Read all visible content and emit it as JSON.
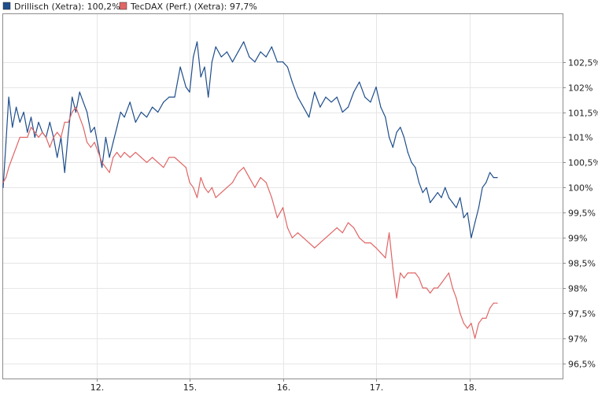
{
  "chart_data": {
    "type": "line",
    "title": "",
    "xlabel": "",
    "ylabel": "",
    "legend_position": "top-left",
    "grid": true,
    "x_tick_labels": [
      "12.",
      "15.",
      "16.",
      "17.",
      "18."
    ],
    "x_tick_positions": [
      1,
      2,
      3,
      4,
      5
    ],
    "xlim": [
      0,
      6
    ],
    "y_tick_values": [
      96.5,
      97,
      97.5,
      98,
      98.5,
      99,
      99.5,
      100,
      100.5,
      101,
      101.5,
      102,
      102.5
    ],
    "y_tick_labels": [
      "96,5%",
      "97%",
      "97,5%",
      "98%",
      "98,5%",
      "99%",
      "99,5%",
      "100%",
      "100,5%",
      "101%",
      "101,5%",
      "102%",
      "102,5%"
    ],
    "ylim": [
      96.2,
      103.45
    ],
    "series": [
      {
        "name": "Drillisch",
        "legend_label": "Drillisch (Xetra): 100,2%",
        "color": "#1f4e8c",
        "x": [
          0.0,
          0.03,
          0.06,
          0.1,
          0.14,
          0.18,
          0.22,
          0.26,
          0.3,
          0.34,
          0.38,
          0.42,
          0.46,
          0.5,
          0.54,
          0.58,
          0.62,
          0.66,
          0.7,
          0.74,
          0.78,
          0.82,
          0.86,
          0.9,
          0.94,
          0.98,
          1.02,
          1.06,
          1.1,
          1.14,
          1.18,
          1.22,
          1.26,
          1.3,
          1.36,
          1.42,
          1.48,
          1.54,
          1.6,
          1.66,
          1.72,
          1.78,
          1.84,
          1.9,
          1.96,
          2.0,
          2.04,
          2.08,
          2.12,
          2.16,
          2.2,
          2.24,
          2.28,
          2.34,
          2.4,
          2.46,
          2.52,
          2.58,
          2.64,
          2.7,
          2.76,
          2.82,
          2.88,
          2.94,
          3.0,
          3.05,
          3.1,
          3.16,
          3.22,
          3.28,
          3.34,
          3.4,
          3.46,
          3.52,
          3.58,
          3.64,
          3.7,
          3.76,
          3.82,
          3.88,
          3.94,
          4.0,
          4.05,
          4.1,
          4.14,
          4.18,
          4.22,
          4.26,
          4.3,
          4.34,
          4.38,
          4.42,
          4.46,
          4.5,
          4.54,
          4.58,
          4.62,
          4.66,
          4.7,
          4.74,
          4.78,
          4.82,
          4.86,
          4.9,
          4.94,
          4.98,
          5.02,
          5.06,
          5.1,
          5.14,
          5.18,
          5.22,
          5.26,
          5.3
        ],
        "values": [
          100.0,
          100.9,
          101.8,
          101.2,
          101.6,
          101.3,
          101.5,
          101.1,
          101.4,
          101.0,
          101.3,
          101.1,
          101.0,
          101.3,
          101.0,
          100.6,
          101.0,
          100.3,
          101.1,
          101.8,
          101.5,
          101.9,
          101.7,
          101.5,
          101.1,
          101.2,
          100.8,
          100.4,
          101.0,
          100.6,
          100.9,
          101.2,
          101.5,
          101.4,
          101.7,
          101.3,
          101.5,
          101.4,
          101.6,
          101.5,
          101.7,
          101.8,
          101.8,
          102.4,
          102.0,
          101.9,
          102.6,
          102.9,
          102.2,
          102.4,
          101.8,
          102.5,
          102.8,
          102.6,
          102.7,
          102.5,
          102.7,
          102.9,
          102.6,
          102.5,
          102.7,
          102.6,
          102.8,
          102.5,
          102.5,
          102.4,
          102.1,
          101.8,
          101.6,
          101.4,
          101.9,
          101.6,
          101.8,
          101.7,
          101.8,
          101.5,
          101.6,
          101.9,
          102.1,
          101.8,
          101.7,
          102.0,
          101.6,
          101.4,
          101.0,
          100.8,
          101.1,
          101.2,
          101.0,
          100.7,
          100.5,
          100.4,
          100.1,
          99.9,
          100.0,
          99.7,
          99.8,
          99.9,
          99.8,
          100.0,
          99.8,
          99.7,
          99.6,
          99.8,
          99.4,
          99.5,
          99.0,
          99.3,
          99.6,
          100.0,
          100.1,
          100.3,
          100.2,
          100.2
        ],
        "last_value_label": "100,2%"
      },
      {
        "name": "TecDAX (Perf.)",
        "legend_label": "TecDAX (Perf.) (Xetra): 97,7%",
        "color": "#e06666",
        "x": [
          0.0,
          0.03,
          0.06,
          0.1,
          0.14,
          0.18,
          0.22,
          0.26,
          0.3,
          0.34,
          0.38,
          0.42,
          0.46,
          0.5,
          0.54,
          0.58,
          0.62,
          0.66,
          0.7,
          0.74,
          0.78,
          0.82,
          0.86,
          0.9,
          0.94,
          0.98,
          1.02,
          1.06,
          1.1,
          1.14,
          1.18,
          1.22,
          1.26,
          1.3,
          1.36,
          1.42,
          1.48,
          1.54,
          1.6,
          1.66,
          1.72,
          1.78,
          1.84,
          1.9,
          1.96,
          2.0,
          2.04,
          2.08,
          2.12,
          2.16,
          2.2,
          2.24,
          2.28,
          2.34,
          2.4,
          2.46,
          2.52,
          2.58,
          2.64,
          2.7,
          2.76,
          2.82,
          2.88,
          2.94,
          3.0,
          3.05,
          3.1,
          3.16,
          3.22,
          3.28,
          3.34,
          3.4,
          3.46,
          3.52,
          3.58,
          3.64,
          3.7,
          3.76,
          3.82,
          3.88,
          3.94,
          4.0,
          4.05,
          4.1,
          4.14,
          4.18,
          4.22,
          4.26,
          4.3,
          4.34,
          4.38,
          4.42,
          4.46,
          4.5,
          4.54,
          4.58,
          4.62,
          4.66,
          4.7,
          4.74,
          4.78,
          4.82,
          4.86,
          4.9,
          4.94,
          4.98,
          5.02,
          5.06,
          5.1,
          5.14,
          5.18,
          5.22,
          5.26,
          5.3
        ],
        "values": [
          100.1,
          100.2,
          100.4,
          100.6,
          100.8,
          101.0,
          101.0,
          101.0,
          101.2,
          101.1,
          101.0,
          101.1,
          101.0,
          100.8,
          101.0,
          101.1,
          101.0,
          101.3,
          101.3,
          101.5,
          101.6,
          101.4,
          101.2,
          100.9,
          100.8,
          100.9,
          100.7,
          100.5,
          100.4,
          100.3,
          100.6,
          100.7,
          100.6,
          100.7,
          100.6,
          100.7,
          100.6,
          100.5,
          100.6,
          100.5,
          100.4,
          100.6,
          100.6,
          100.5,
          100.4,
          100.1,
          100.0,
          99.8,
          100.2,
          100.0,
          99.9,
          100.0,
          99.8,
          99.9,
          100.0,
          100.1,
          100.3,
          100.4,
          100.2,
          100.0,
          100.2,
          100.1,
          99.8,
          99.4,
          99.6,
          99.2,
          99.0,
          99.1,
          99.0,
          98.9,
          98.8,
          98.9,
          99.0,
          99.1,
          99.2,
          99.1,
          99.3,
          99.2,
          99.0,
          98.9,
          98.9,
          98.8,
          98.7,
          98.6,
          99.1,
          98.4,
          97.8,
          98.3,
          98.2,
          98.3,
          98.3,
          98.3,
          98.2,
          98.0,
          98.0,
          97.9,
          98.0,
          98.0,
          98.1,
          98.2,
          98.3,
          98.0,
          97.8,
          97.5,
          97.3,
          97.2,
          97.3,
          97.0,
          97.3,
          97.4,
          97.4,
          97.6,
          97.7,
          97.7
        ],
        "last_value_label": "97,7%"
      }
    ]
  }
}
